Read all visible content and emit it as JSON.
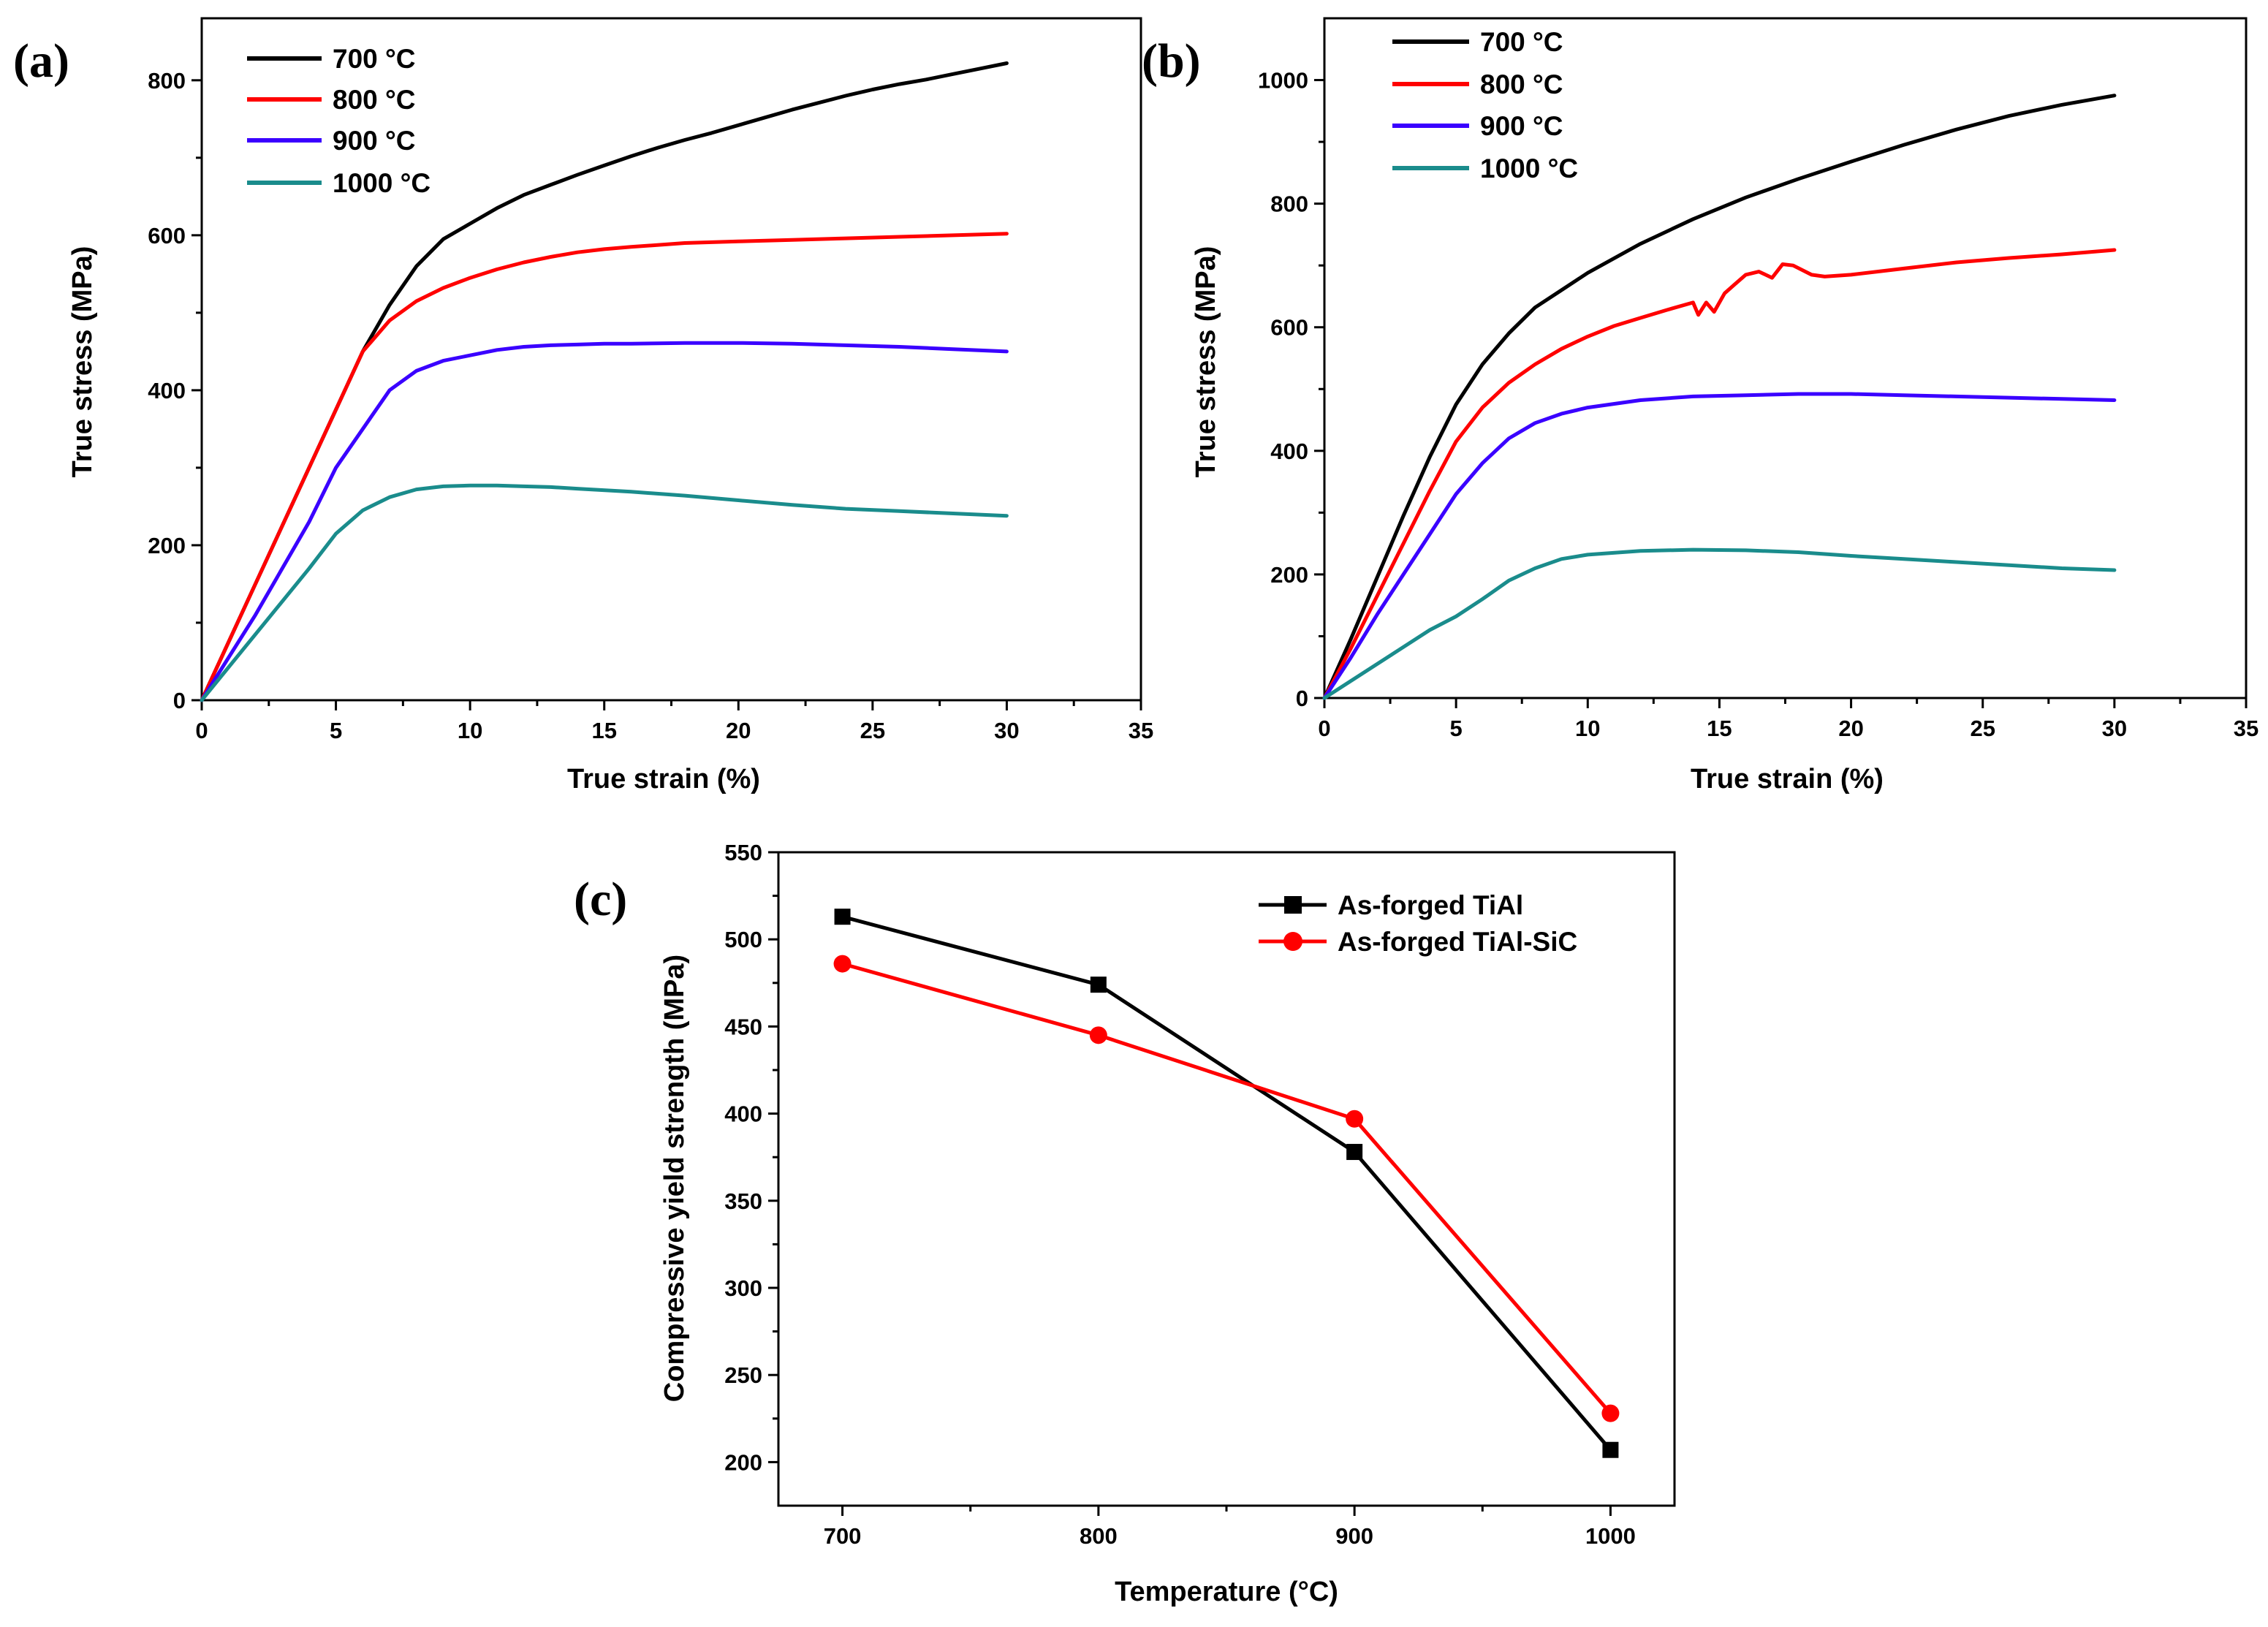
{
  "chart_data": [
    {
      "panel": "(a)",
      "type": "line",
      "title": "",
      "xlabel": "True strain (%)",
      "ylabel": "True stress (MPa)",
      "xlim": [
        0,
        35
      ],
      "ylim": [
        0,
        880
      ],
      "xticks": [
        0,
        5,
        10,
        15,
        20,
        25,
        30,
        35
      ],
      "yticks": [
        0,
        200,
        400,
        600,
        800
      ],
      "legend_position": "top-left",
      "grid": false,
      "series": [
        {
          "name": "700 °C",
          "color": "#000000",
          "x": [
            0,
            2,
            4,
            5,
            6,
            7,
            8,
            9,
            10,
            11,
            12,
            13,
            14,
            15,
            16,
            17,
            18,
            19,
            20,
            21,
            22,
            23,
            24,
            25,
            26,
            27,
            28,
            29,
            30
          ],
          "y": [
            0,
            150,
            300,
            375,
            450,
            510,
            560,
            595,
            615,
            635,
            652,
            665,
            678,
            690,
            702,
            713,
            723,
            732,
            742,
            752,
            762,
            771,
            780,
            788,
            795,
            801,
            808,
            815,
            822
          ]
        },
        {
          "name": "800 °C",
          "color": "#ff0000",
          "x": [
            0,
            2,
            4,
            5,
            6,
            7,
            8,
            9,
            10,
            11,
            12,
            13,
            14,
            15,
            16,
            18,
            20,
            22,
            24,
            26,
            28,
            30
          ],
          "y": [
            0,
            150,
            300,
            375,
            450,
            490,
            515,
            532,
            545,
            556,
            565,
            572,
            578,
            582,
            585,
            590,
            592,
            594,
            596,
            598,
            600,
            602
          ]
        },
        {
          "name": "900 °C",
          "color": "#3a00ff",
          "x": [
            0,
            2,
            4,
            5,
            6,
            7,
            8,
            9,
            10,
            11,
            12,
            13,
            14,
            15,
            16,
            18,
            20,
            22,
            24,
            26,
            28,
            30
          ],
          "y": [
            0,
            110,
            230,
            300,
            350,
            400,
            425,
            438,
            445,
            452,
            456,
            458,
            459,
            460,
            460,
            461,
            461,
            460,
            458,
            456,
            453,
            450
          ]
        },
        {
          "name": "1000 °C",
          "color": "#1a8c8c",
          "x": [
            0,
            2,
            4,
            5,
            6,
            7,
            8,
            9,
            10,
            11,
            12,
            13,
            14,
            16,
            18,
            20,
            22,
            24,
            26,
            28,
            30
          ],
          "y": [
            0,
            85,
            170,
            215,
            245,
            262,
            272,
            276,
            277,
            277,
            276,
            275,
            273,
            269,
            264,
            258,
            252,
            247,
            244,
            241,
            238
          ]
        }
      ]
    },
    {
      "panel": "(b)",
      "type": "line",
      "title": "",
      "xlabel": "True strain (%)",
      "ylabel": "True stress (MPa)",
      "xlim": [
        0,
        35
      ],
      "ylim": [
        0,
        1100
      ],
      "xticks": [
        0,
        5,
        10,
        15,
        20,
        25,
        30,
        35
      ],
      "yticks": [
        0,
        200,
        400,
        600,
        800,
        1000
      ],
      "legend_position": "top-left",
      "grid": false,
      "series": [
        {
          "name": "700 °C",
          "color": "#000000",
          "x": [
            0,
            1,
            2,
            3,
            4,
            5,
            6,
            7,
            8,
            9,
            10,
            12,
            14,
            16,
            18,
            20,
            22,
            24,
            26,
            28,
            30
          ],
          "y": [
            0,
            95,
            195,
            295,
            390,
            475,
            540,
            590,
            632,
            660,
            688,
            735,
            775,
            810,
            840,
            868,
            895,
            920,
            942,
            960,
            975
          ]
        },
        {
          "name": "800 °C",
          "color": "#ff0000",
          "x": [
            0,
            1,
            2,
            3,
            4,
            5,
            6,
            7,
            8,
            9,
            10,
            11,
            12,
            13,
            14,
            14.2,
            14.5,
            14.8,
            15.2,
            15.6,
            16,
            16.5,
            17,
            17.4,
            17.8,
            18.5,
            19,
            20,
            22,
            24,
            26,
            28,
            30
          ],
          "y": [
            0,
            80,
            165,
            250,
            335,
            415,
            470,
            510,
            540,
            565,
            585,
            602,
            615,
            628,
            640,
            620,
            640,
            625,
            655,
            670,
            685,
            690,
            680,
            702,
            700,
            685,
            682,
            685,
            695,
            705,
            712,
            718,
            725
          ]
        },
        {
          "name": "900 °C",
          "color": "#3a00ff",
          "x": [
            0,
            1,
            2,
            3,
            4,
            5,
            6,
            7,
            8,
            9,
            10,
            12,
            14,
            16,
            18,
            20,
            22,
            24,
            26,
            28,
            30
          ],
          "y": [
            0,
            65,
            135,
            200,
            265,
            330,
            380,
            420,
            445,
            460,
            470,
            482,
            488,
            490,
            492,
            492,
            490,
            488,
            486,
            484,
            482
          ]
        },
        {
          "name": "1000 °C",
          "color": "#1a8c8c",
          "x": [
            0,
            2,
            4,
            5,
            6,
            7,
            8,
            9,
            10,
            12,
            14,
            16,
            18,
            20,
            22,
            24,
            26,
            28,
            30
          ],
          "y": [
            0,
            55,
            110,
            132,
            160,
            190,
            210,
            225,
            232,
            238,
            240,
            239,
            236,
            230,
            225,
            220,
            215,
            210,
            207
          ]
        }
      ]
    },
    {
      "panel": "(c)",
      "type": "line",
      "title": "",
      "xlabel": "Temperature (°C)",
      "ylabel": "Compressive yield strength (MPa)",
      "xlim": [
        675,
        1025
      ],
      "ylim": [
        175,
        550
      ],
      "xticks": [
        700,
        800,
        900,
        1000
      ],
      "yticks": [
        200,
        250,
        300,
        350,
        400,
        450,
        500,
        550
      ],
      "legend_position": "top-right",
      "grid": false,
      "series": [
        {
          "name": "As-forged TiAl",
          "color": "#000000",
          "marker": "square",
          "x": [
            700,
            800,
            900,
            1000
          ],
          "y": [
            513,
            474,
            378,
            207
          ]
        },
        {
          "name": "As-forged TiAl-SiC",
          "color": "#ff0000",
          "marker": "circle",
          "x": [
            700,
            800,
            900,
            1000
          ],
          "y": [
            486,
            445,
            397,
            228
          ]
        }
      ]
    }
  ]
}
